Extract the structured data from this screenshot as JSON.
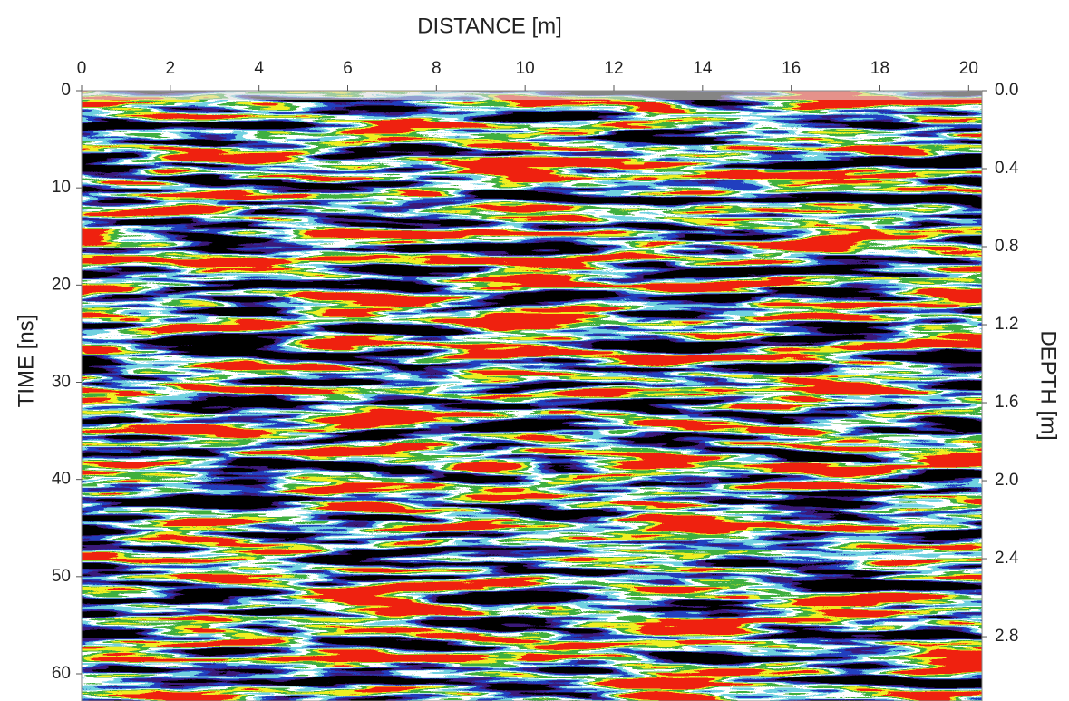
{
  "chart_data": {
    "type": "radargram",
    "title": "DISTANCE [m]",
    "y_label": "TIME [ns]",
    "y2_label": "DEPTH [m]",
    "xlim": [
      0,
      20.3
    ],
    "xticks": [
      0,
      2,
      4,
      6,
      8,
      10,
      12,
      14,
      16,
      18,
      20
    ],
    "ylim": [
      0,
      62.8
    ],
    "yticks": [
      0,
      10,
      20,
      30,
      40,
      50,
      60
    ],
    "y2lim": [
      0,
      3.13
    ],
    "y2ticks": [
      {
        "value": 0,
        "label": "0.0"
      },
      0.4,
      0.8,
      1.2,
      1.6,
      {
        "value": 2,
        "label": "2.0"
      },
      2.4,
      2.8
    ],
    "y_inverted": true
  }
}
